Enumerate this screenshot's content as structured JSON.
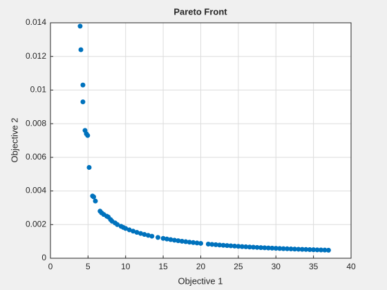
{
  "chart_data": {
    "type": "scatter",
    "title": "Pareto Front",
    "xlabel": "Objective 1",
    "ylabel": "Objective 2",
    "color": "#0072bd",
    "grid": true,
    "xlim": [
      0,
      40
    ],
    "ylim": [
      0,
      0.014
    ],
    "xticks": [
      0,
      5,
      10,
      15,
      20,
      25,
      30,
      35,
      40
    ],
    "yticks": [
      0,
      0.002,
      0.004,
      0.006,
      0.008,
      0.01,
      0.012,
      0.014
    ],
    "x": [
      3.95,
      4.05,
      4.32,
      4.32,
      4.6,
      4.78,
      4.95,
      5.15,
      5.6,
      5.75,
      5.98,
      6.6,
      6.8,
      7.1,
      7.5,
      7.7,
      8.0,
      8.2,
      8.6,
      8.9,
      9.4,
      9.7,
      10,
      10.5,
      11,
      11.5,
      12,
      12.5,
      13,
      13.5,
      14.3,
      15,
      15.5,
      16,
      16.5,
      17,
      17.5,
      18,
      18.5,
      19,
      19.5,
      20,
      21,
      21.5,
      22,
      22.5,
      23,
      23.5,
      24,
      24.5,
      25,
      25.5,
      26,
      26.5,
      27,
      27.5,
      28,
      28.5,
      29,
      29.5,
      30,
      30.5,
      31,
      31.5,
      32,
      32.5,
      33,
      33.5,
      34,
      34.5,
      35,
      35.5,
      36,
      36.5,
      37
    ],
    "values": [
      0.0138,
      0.0124,
      0.0103,
      0.0093,
      0.0076,
      0.0074,
      0.0073,
      0.0054,
      0.0037,
      0.00365,
      0.0034,
      0.0028,
      0.0027,
      0.0026,
      0.0025,
      0.00245,
      0.0023,
      0.0022,
      0.0021,
      0.002,
      0.0019,
      0.00183,
      0.00177,
      0.001686,
      0.001609,
      0.001539,
      0.001475,
      0.001416,
      0.001362,
      0.001311,
      0.001238,
      0.00118,
      0.001142,
      0.001106,
      0.001073,
      0.001041,
      0.001011,
      0.000983,
      0.000957,
      0.000932,
      0.000908,
      0.000885,
      0.000843,
      0.000823,
      0.000805,
      0.000787,
      0.00077,
      0.000753,
      0.000738,
      0.000722,
      0.000708,
      0.000694,
      0.000681,
      0.000668,
      0.000656,
      0.000644,
      0.000632,
      0.000621,
      0.00061,
      0.0006,
      0.00059,
      0.00058,
      0.000571,
      0.000562,
      0.000553,
      0.000545,
      0.000536,
      0.000528,
      0.000521,
      0.000513,
      0.000506,
      0.000499,
      0.000492,
      0.000485,
      0.000478
    ]
  }
}
